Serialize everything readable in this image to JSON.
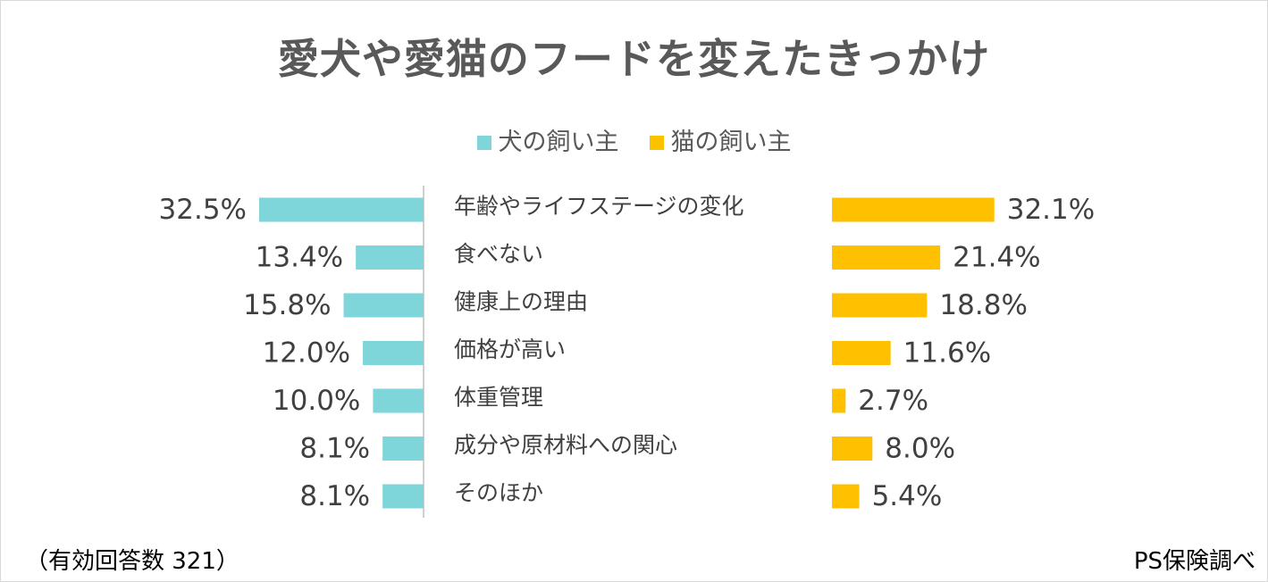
{
  "chart_data": {
    "type": "bar",
    "title": "愛犬や愛猫のフードを変えたきっかけ",
    "categories": [
      "年齢やライフステージの変化",
      "食べない",
      "健康上の理由",
      "価格が高い",
      "体重管理",
      "成分や原材料への関心",
      "そのほか"
    ],
    "series": [
      {
        "name": "犬の飼い主",
        "color": "#7fd6da",
        "values": [
          32.5,
          13.4,
          15.8,
          12.0,
          10.0,
          8.1,
          8.1
        ],
        "labels": [
          "32.5%",
          "13.4%",
          "15.8%",
          "12.0%",
          "10.0%",
          "8.1%",
          "8.1%"
        ]
      },
      {
        "name": "猫の飼い主",
        "color": "#ffc000",
        "values": [
          32.1,
          21.4,
          18.8,
          11.6,
          2.7,
          8.0,
          5.4
        ],
        "labels": [
          "32.1%",
          "21.4%",
          "18.8%",
          "11.6%",
          "2.7%",
          "8.0%",
          "5.4%"
        ]
      }
    ],
    "unit": "%",
    "legend_position": "top"
  },
  "footnote": {
    "sample": "（有効回答数 321）",
    "source": "PS保険調べ"
  }
}
